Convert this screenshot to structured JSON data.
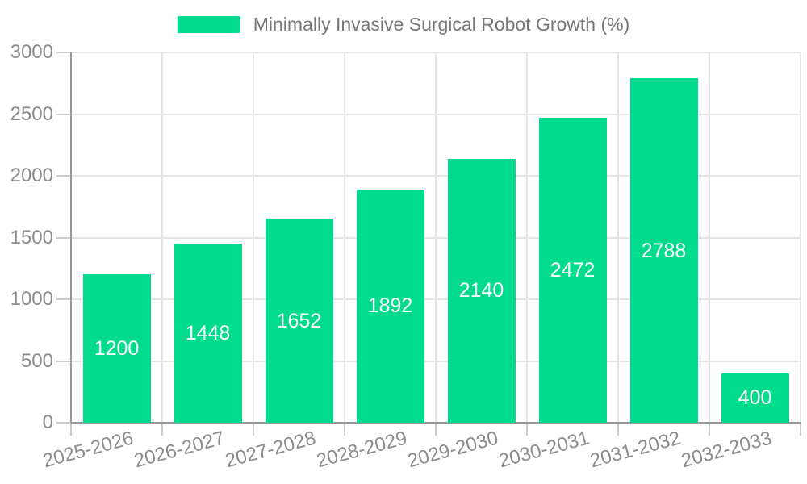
{
  "legend": {
    "label": "Minimally Invasive Surgical Robot Growth (%)"
  },
  "chart_data": {
    "type": "bar",
    "title": "Minimally Invasive Surgical Robot Growth (%)",
    "categories": [
      "2025-2026",
      "2026-2027",
      "2027-2028",
      "2028-2029",
      "2029-2030",
      "2030-2031",
      "2031-2032",
      "2032-2033"
    ],
    "series": [
      {
        "name": "Minimally Invasive Surgical Robot Growth (%)",
        "color": "#00DB8D",
        "values": [
          1200,
          1448,
          1652,
          1892,
          2140,
          2472,
          2788,
          400
        ]
      }
    ],
    "xlabel": "",
    "ylabel": "",
    "ylim": [
      0,
      3000
    ],
    "yticks": [
      0,
      500,
      1000,
      1500,
      2000,
      2500,
      3000
    ],
    "grid": true,
    "legend_position": "top-center",
    "value_label_position": "inside-center"
  },
  "style": {
    "background_color": "#ffffff",
    "bar_color": "#00DB8D",
    "axis_color": "#999999",
    "grid_color": "#e4e4e4",
    "tick_color": "#cccccc",
    "tick_label_color": "#8c8c8c",
    "legend_text_color": "#777777",
    "value_label_color": "#ffffff"
  }
}
